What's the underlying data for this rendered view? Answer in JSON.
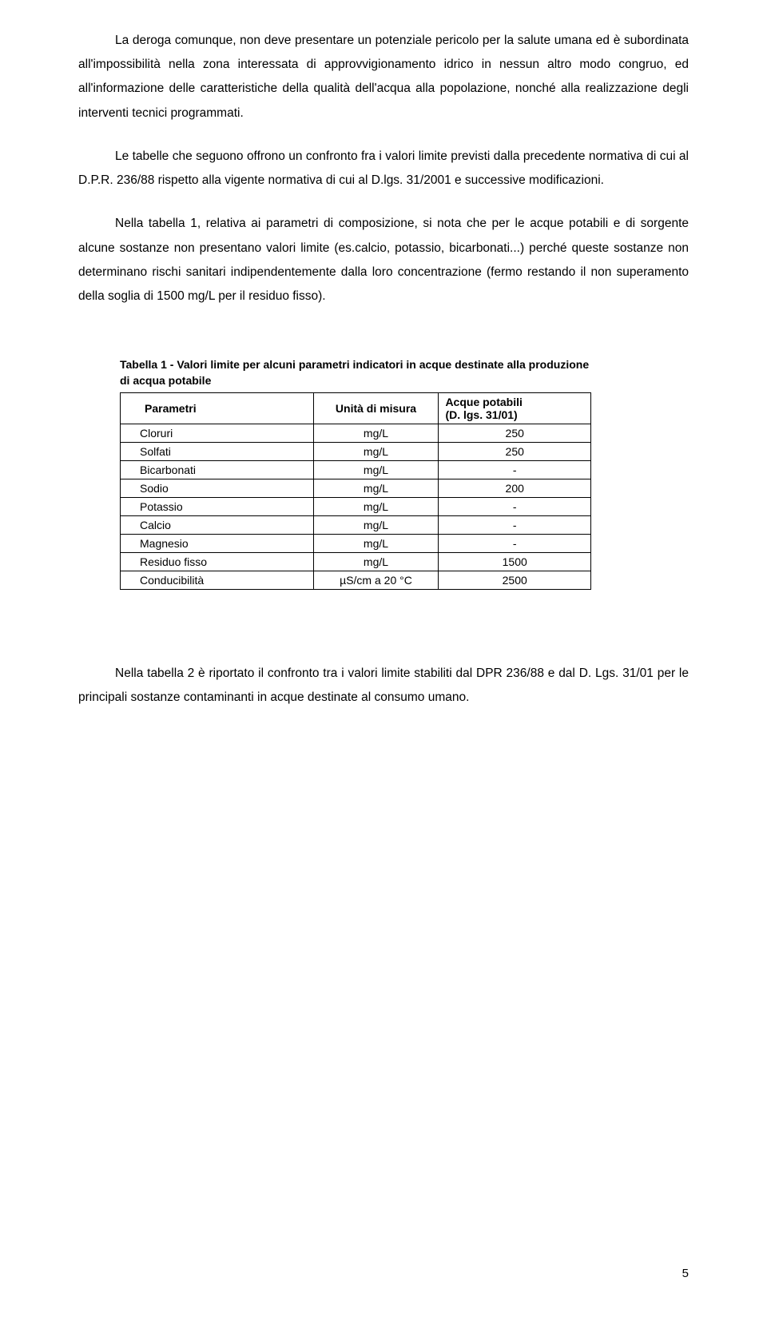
{
  "paragraphs": {
    "p1": "La deroga comunque, non deve presentare un potenziale pericolo per la salute umana ed è subordinata all'impossibilità nella zona interessata di approvvigionamento idrico in nessun altro modo congruo, ed all'informazione delle caratteristiche della qualità dell'acqua alla popolazione, nonché alla realizzazione degli interventi tecnici programmati.",
    "p2": "Le tabelle che seguono offrono un confronto fra i valori limite previsti dalla precedente normativa di cui al D.P.R. 236/88 rispetto alla vigente normativa di cui al D.lgs. 31/2001 e successive modificazioni.",
    "p3": "Nella tabella 1, relativa ai parametri di composizione, si nota che per le acque potabili e di sorgente alcune sostanze non presentano valori limite (es.calcio, potassio, bicarbonati...) perché queste sostanze non determinano rischi sanitari indipendentemente dalla loro concentrazione (fermo restando il non superamento della soglia di 1500 mg/L per il residuo fisso).",
    "p4": "Nella tabella 2 è riportato il confronto tra i valori limite stabiliti dal DPR 236/88 e dal D. Lgs. 31/01 per le principali sostanze contaminanti in acque destinate al consumo umano."
  },
  "table1": {
    "caption": "Tabella 1 - Valori limite per alcuni parametri indicatori in acque destinate alla produzione di acqua potabile",
    "headers": {
      "col1": "Parametri",
      "col2": "Unità di misura",
      "col3_line1": "Acque potabili",
      "col3_line2": "(D. lgs. 31/01)"
    },
    "rows": [
      {
        "param": "Cloruri",
        "unit": "mg/L",
        "value": "250"
      },
      {
        "param": "Solfati",
        "unit": "mg/L",
        "value": "250"
      },
      {
        "param": "Bicarbonati",
        "unit": "mg/L",
        "value": "-"
      },
      {
        "param": "Sodio",
        "unit": "mg/L",
        "value": "200"
      },
      {
        "param": "Potassio",
        "unit": "mg/L",
        "value": "-"
      },
      {
        "param": "Calcio",
        "unit": "mg/L",
        "value": "-"
      },
      {
        "param": "Magnesio",
        "unit": "mg/L",
        "value": "-"
      },
      {
        "param": "Residuo fisso",
        "unit": "mg/L",
        "value": "1500"
      },
      {
        "param": "Conducibilità",
        "unit": "µS/cm a 20 °C",
        "value": "2500"
      }
    ]
  },
  "page_number": "5"
}
